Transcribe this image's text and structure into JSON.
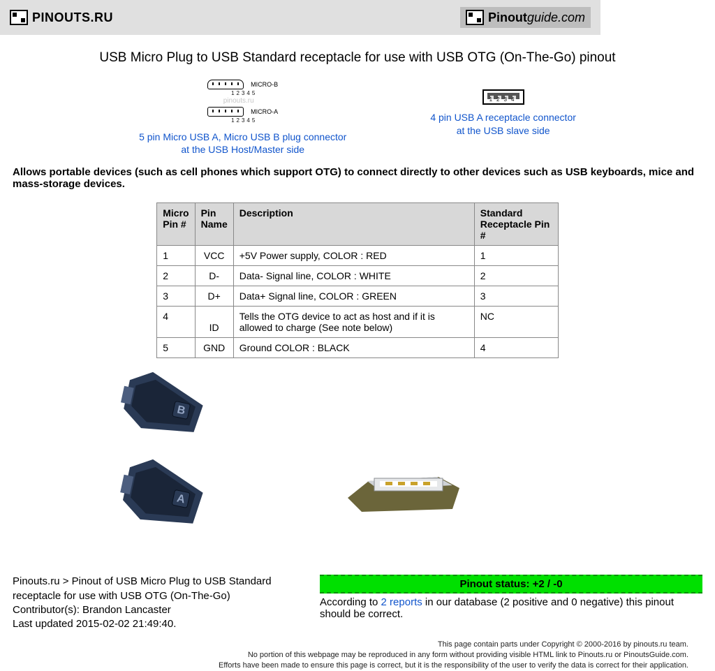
{
  "header": {
    "left_logo_text": "PINOUTS.RU",
    "right_logo_text_a": "Pinout",
    "right_logo_text_b": "guide.com"
  },
  "title": "USB Micro Plug to USB Standard receptacle for use with USB OTG (On-The-Go) pinout",
  "connectors": {
    "left": {
      "label_b": "MICRO-B",
      "label_a": "MICRO-A",
      "pin_numbers": "12345",
      "watermark": "pinouts.ru",
      "link_line1": "5 pin Micro USB A, Micro USB B plug connector",
      "link_line2": "at the USB Host/Master side"
    },
    "right": {
      "pin_numbers": "1234",
      "link_line1": "4 pin USB A receptacle connector",
      "link_line2": "at the USB slave side"
    }
  },
  "intro_text": "Allows portable devices (such as cell phones which support OTG) to connect directly to other devices such as USB keyboards, mice and mass-storage devices.",
  "table": {
    "columns": [
      "Micro Pin #",
      "Pin Name",
      "Description",
      "Standard Receptacle Pin #"
    ],
    "rows": [
      [
        "1",
        "VCC",
        "+5V Power supply, COLOR : RED",
        "1"
      ],
      [
        "2",
        "D-",
        "Data- Signal line, COLOR : WHITE",
        "2"
      ],
      [
        "3",
        "D+",
        "Data+ Signal line, COLOR : GREEN",
        "3"
      ],
      [
        "4",
        "ID",
        "Tells the OTG device to act as host and if it is allowed to charge (See note below)",
        "NC"
      ],
      [
        "5",
        "GND",
        " Ground COLOR : BLACK",
        "4"
      ]
    ],
    "header_bg": "#d8d8d8",
    "border_color": "#888888"
  },
  "footer": {
    "breadcrumb": "Pinouts.ru > Pinout of USB Micro Plug to USB Standard receptacle for use with USB OTG (On-The-Go)",
    "contributor_label": "Contributor(s): Brandon Lancaster",
    "last_updated": "Last updated 2015-02-02 21:49:40.",
    "status_bar_text": "Pinout status: +2 / -0",
    "status_bar_color": "#00e000",
    "status_desc_prefix": "According to ",
    "status_reports_link": "2 reports",
    "status_desc_suffix": " in our database (2 positive and 0 negative) this pinout should be correct."
  },
  "copyright": {
    "line1": "This page contain parts under Copyright © 2000-2016 by pinouts.ru team.",
    "line2": "No portion of this webpage may be reproduced in any form without providing visible HTML link to Pinouts.ru or PinoutsGuide.com.",
    "line3": "Efforts have been made to ensure this page is correct, but it is the responsibility of the user to verify the data is correct for their application."
  }
}
